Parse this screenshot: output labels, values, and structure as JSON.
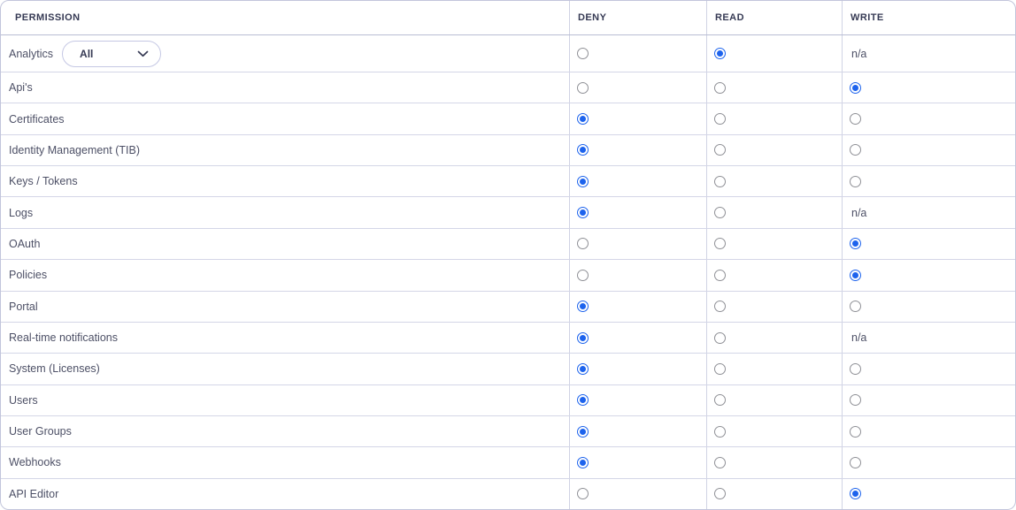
{
  "colors": {
    "accent_blue": "#1d63ed",
    "outer_border": "#c2c5db",
    "row_border": "#d4d6e7",
    "header_text": "#363a54",
    "row_text": "#4d5066",
    "radio_unselected_border": "#8f9096"
  },
  "table": {
    "columns": [
      {
        "key": "permission",
        "label": "PERMISSION"
      },
      {
        "key": "deny",
        "label": "DENY"
      },
      {
        "key": "read",
        "label": "READ"
      },
      {
        "key": "write",
        "label": "WRITE"
      }
    ],
    "na_label": "n/a",
    "rows": [
      {
        "label": "Analytics",
        "dropdown": {
          "value": "All"
        },
        "deny": "unselected",
        "read": "selected",
        "write": "na"
      },
      {
        "label": "Api's",
        "deny": "unselected",
        "read": "unselected",
        "write": "selected"
      },
      {
        "label": "Certificates",
        "deny": "selected",
        "read": "unselected",
        "write": "unselected"
      },
      {
        "label": "Identity Management (TIB)",
        "deny": "selected",
        "read": "unselected",
        "write": "unselected"
      },
      {
        "label": "Keys / Tokens",
        "deny": "selected",
        "read": "unselected",
        "write": "unselected"
      },
      {
        "label": "Logs",
        "deny": "selected",
        "read": "unselected",
        "write": "na"
      },
      {
        "label": "OAuth",
        "deny": "unselected",
        "read": "unselected",
        "write": "selected"
      },
      {
        "label": "Policies",
        "deny": "unselected",
        "read": "unselected",
        "write": "selected"
      },
      {
        "label": "Portal",
        "deny": "selected",
        "read": "unselected",
        "write": "unselected"
      },
      {
        "label": "Real-time notifications",
        "deny": "selected",
        "read": "unselected",
        "write": "na"
      },
      {
        "label": "System (Licenses)",
        "deny": "selected",
        "read": "unselected",
        "write": "unselected"
      },
      {
        "label": "Users",
        "deny": "selected",
        "read": "unselected",
        "write": "unselected"
      },
      {
        "label": "User Groups",
        "deny": "selected",
        "read": "unselected",
        "write": "unselected"
      },
      {
        "label": "Webhooks",
        "deny": "selected",
        "read": "unselected",
        "write": "unselected"
      },
      {
        "label": "API Editor",
        "deny": "unselected",
        "read": "unselected",
        "write": "selected"
      }
    ]
  }
}
